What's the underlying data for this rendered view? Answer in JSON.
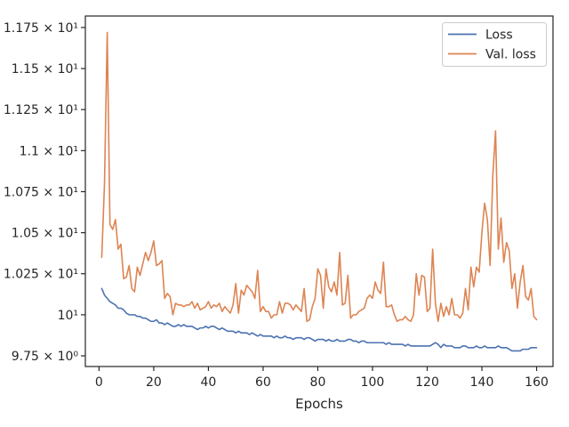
{
  "chart_data": {
    "type": "line",
    "title": "",
    "xlabel": "Epochs",
    "ylabel": "",
    "xlim": [
      -5,
      166
    ],
    "ylim": [
      9.685,
      11.82
    ],
    "x_ticks": [
      0,
      20,
      40,
      60,
      80,
      100,
      120,
      140,
      160
    ],
    "y_ticks": [
      {
        "value": 9.75,
        "label": "9.75 × 10⁰"
      },
      {
        "value": 10.0,
        "label": "10¹"
      },
      {
        "value": 10.25,
        "label": "1.025 × 10¹"
      },
      {
        "value": 10.5,
        "label": "1.05 × 10¹"
      },
      {
        "value": 10.75,
        "label": "1.075 × 10¹"
      },
      {
        "value": 11.0,
        "label": "1.1 × 10¹"
      },
      {
        "value": 11.25,
        "label": "1.125 × 10¹"
      },
      {
        "value": 11.5,
        "label": "1.15 × 10¹"
      },
      {
        "value": 11.75,
        "label": "1.175 × 10¹"
      }
    ],
    "grid": false,
    "legend_position": "top-right",
    "series": [
      {
        "name": "Loss",
        "color": "#4c72b0",
        "x_start": 1,
        "values": [
          10.16,
          10.12,
          10.1,
          10.08,
          10.07,
          10.06,
          10.04,
          10.04,
          10.03,
          10.01,
          10.0,
          10.0,
          10.0,
          9.99,
          9.99,
          9.98,
          9.98,
          9.97,
          9.96,
          9.96,
          9.97,
          9.95,
          9.95,
          9.94,
          9.95,
          9.94,
          9.93,
          9.93,
          9.94,
          9.93,
          9.94,
          9.93,
          9.93,
          9.93,
          9.92,
          9.91,
          9.92,
          9.92,
          9.93,
          9.92,
          9.93,
          9.93,
          9.92,
          9.91,
          9.92,
          9.91,
          9.9,
          9.9,
          9.9,
          9.89,
          9.9,
          9.89,
          9.89,
          9.89,
          9.88,
          9.89,
          9.88,
          9.87,
          9.88,
          9.87,
          9.87,
          9.87,
          9.87,
          9.86,
          9.87,
          9.86,
          9.86,
          9.87,
          9.86,
          9.86,
          9.85,
          9.86,
          9.86,
          9.86,
          9.85,
          9.86,
          9.86,
          9.85,
          9.84,
          9.85,
          9.85,
          9.85,
          9.84,
          9.85,
          9.84,
          9.84,
          9.85,
          9.84,
          9.84,
          9.84,
          9.85,
          9.85,
          9.84,
          9.84,
          9.83,
          9.84,
          9.84,
          9.83,
          9.83,
          9.83,
          9.83,
          9.83,
          9.83,
          9.83,
          9.82,
          9.83,
          9.82,
          9.82,
          9.82,
          9.82,
          9.82,
          9.81,
          9.82,
          9.81,
          9.81,
          9.81,
          9.81,
          9.81,
          9.81,
          9.81,
          9.81,
          9.82,
          9.83,
          9.82,
          9.8,
          9.82,
          9.81,
          9.81,
          9.81,
          9.8,
          9.8,
          9.8,
          9.81,
          9.81,
          9.8,
          9.8,
          9.8,
          9.81,
          9.8,
          9.8,
          9.81,
          9.8,
          9.8,
          9.8,
          9.8,
          9.81,
          9.8,
          9.8,
          9.8,
          9.79,
          9.78,
          9.78,
          9.78,
          9.78,
          9.79,
          9.79,
          9.79,
          9.8,
          9.8,
          9.8
        ]
      },
      {
        "name": "Val. loss",
        "color": "#dd8452",
        "x_start": 1,
        "values": [
          10.35,
          10.8,
          11.72,
          10.55,
          10.52,
          10.58,
          10.4,
          10.43,
          10.22,
          10.23,
          10.3,
          10.16,
          10.14,
          10.29,
          10.24,
          10.31,
          10.38,
          10.33,
          10.38,
          10.45,
          10.3,
          10.31,
          10.33,
          10.1,
          10.13,
          10.11,
          10.0,
          10.07,
          10.06,
          10.06,
          10.05,
          10.06,
          10.06,
          10.08,
          10.04,
          10.07,
          10.03,
          10.04,
          10.05,
          10.08,
          10.04,
          10.06,
          10.05,
          10.07,
          10.02,
          10.05,
          10.03,
          10.01,
          10.06,
          10.19,
          10.01,
          10.15,
          10.12,
          10.18,
          10.16,
          10.14,
          10.1,
          10.27,
          10.02,
          10.05,
          10.02,
          10.02,
          9.98,
          10.0,
          10.0,
          10.08,
          10.01,
          10.07,
          10.07,
          10.06,
          10.03,
          10.06,
          10.04,
          10.02,
          10.16,
          9.96,
          9.97,
          10.05,
          10.1,
          10.28,
          10.24,
          10.04,
          10.28,
          10.17,
          10.14,
          10.2,
          10.12,
          10.38,
          10.06,
          10.07,
          10.24,
          9.98,
          10.0,
          10.0,
          10.02,
          10.03,
          10.04,
          10.1,
          10.12,
          10.1,
          10.2,
          10.15,
          10.13,
          10.32,
          10.05,
          10.05,
          10.06,
          10.0,
          9.96,
          9.97,
          9.97,
          9.99,
          9.97,
          9.96,
          10.0,
          10.25,
          10.12,
          10.24,
          10.23,
          10.02,
          10.04,
          10.4,
          10.07,
          9.96,
          10.07,
          9.99,
          10.05,
          10.0,
          10.1,
          10.0,
          10.0,
          9.98,
          10.01,
          10.16,
          10.03,
          10.29,
          10.17,
          10.29,
          10.26,
          10.5,
          10.68,
          10.58,
          10.3,
          10.85,
          11.12,
          10.4,
          10.59,
          10.32,
          10.44,
          10.39,
          10.16,
          10.25,
          10.04,
          10.2,
          10.3,
          10.11,
          10.09,
          10.16,
          9.99,
          9.97
        ]
      }
    ]
  }
}
